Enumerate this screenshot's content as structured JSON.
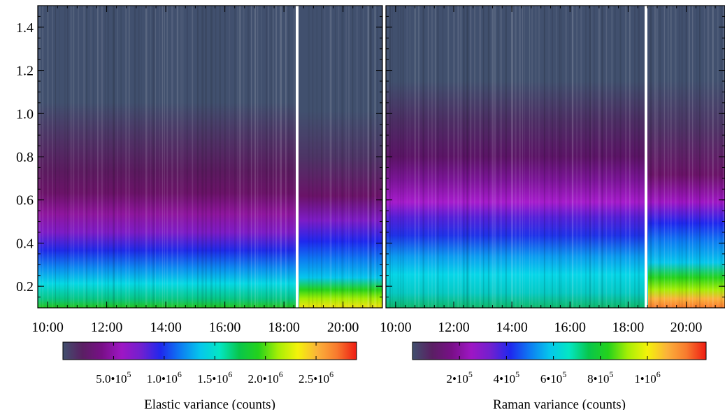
{
  "chart_data": [
    {
      "type": "heatmap",
      "panel": "elastic",
      "title": "",
      "xlabel": "",
      "ylabel": "",
      "xlim": [
        "09:40",
        "21:20"
      ],
      "ylim": [
        0.1,
        1.5
      ],
      "x_ticks": [
        "10:00",
        "12:00",
        "14:00",
        "16:00",
        "18:00",
        "20:00"
      ],
      "y_ticks": [
        "0.2",
        "0.4",
        "0.6",
        "0.8",
        "1.0",
        "1.2",
        "1.4"
      ],
      "gap_time": "18:35",
      "variance_profile_at_10_00": [
        {
          "y": 0.12,
          "value": 1200000
        },
        {
          "y": 0.2,
          "value": 900000
        },
        {
          "y": 0.3,
          "value": 600000
        },
        {
          "y": 0.4,
          "value": 450000
        },
        {
          "y": 0.5,
          "value": 300000
        },
        {
          "y": 0.6,
          "value": 200000
        },
        {
          "y": 0.8,
          "value": 80000
        },
        {
          "y": 1.0,
          "value": 20000
        },
        {
          "y": 1.4,
          "value": 0
        }
      ],
      "colorbar": {
        "label": "Elastic variance (counts)",
        "range": [
          0,
          2900000
        ],
        "tick_values": [
          500000,
          1000000,
          1500000,
          2000000,
          2500000
        ],
        "tick_labels": [
          {
            "mant": "5.0•10",
            "exp": "5"
          },
          {
            "mant": "1.0•10",
            "exp": "6"
          },
          {
            "mant": "1.5•10",
            "exp": "6"
          },
          {
            "mant": "2.0•10",
            "exp": "6"
          },
          {
            "mant": "2.5•10",
            "exp": "6"
          }
        ]
      }
    },
    {
      "type": "heatmap",
      "panel": "raman",
      "title": "",
      "xlabel": "",
      "ylabel": "",
      "xlim": [
        "09:40",
        "21:20"
      ],
      "ylim": [
        0.1,
        1.5
      ],
      "x_ticks": [
        "10:00",
        "12:00",
        "14:00",
        "16:00",
        "18:00",
        "20:00"
      ],
      "y_ticks": [],
      "gap_time": "18:35",
      "variance_profile_at_10_00": [
        {
          "y": 0.12,
          "value": 600000
        },
        {
          "y": 0.2,
          "value": 500000
        },
        {
          "y": 0.3,
          "value": 350000
        },
        {
          "y": 0.4,
          "value": 280000
        },
        {
          "y": 0.5,
          "value": 180000
        },
        {
          "y": 0.6,
          "value": 120000
        },
        {
          "y": 0.8,
          "value": 50000
        },
        {
          "y": 1.0,
          "value": 15000
        },
        {
          "y": 1.4,
          "value": 0
        }
      ],
      "colorbar": {
        "label": "Raman variance (counts)",
        "range": [
          0,
          1250000
        ],
        "tick_values": [
          200000,
          400000,
          600000,
          800000,
          1000000
        ],
        "tick_labels": [
          {
            "mant": "2•10",
            "exp": "5"
          },
          {
            "mant": "4•10",
            "exp": "5"
          },
          {
            "mant": "6•10",
            "exp": "5"
          },
          {
            "mant": "8•10",
            "exp": "5"
          },
          {
            "mant": "1•10",
            "exp": "6"
          }
        ]
      }
    }
  ],
  "colormap": [
    "#41506e",
    "#5a1f63",
    "#780f87",
    "#9e16c4",
    "#7020d0",
    "#1f28ee",
    "#0d7cf2",
    "#05c6ec",
    "#04e6c4",
    "#08c64c",
    "#25d21b",
    "#a6ee05",
    "#f4f20a",
    "#fbb23a",
    "#f87a2e",
    "#ee1b12"
  ]
}
